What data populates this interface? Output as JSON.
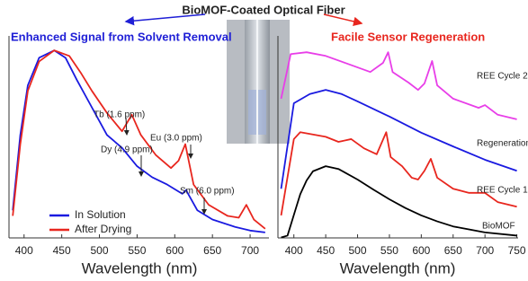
{
  "header": {
    "title": "BioMOF-Coated Optical Fiber"
  },
  "chart_data": [
    {
      "type": "line",
      "title": "Enhanced Signal from Solvent Removal",
      "title_color": "#1f1fd6",
      "x_label": "Wavelength (nm)",
      "xlim": [
        380,
        725
      ],
      "xticks": [
        400,
        450,
        500,
        550,
        600,
        650,
        700
      ],
      "ylim": [
        0,
        1.05
      ],
      "legend": "lower left",
      "annotations": [
        "Tb (1.6 ppm)",
        "Dy (4.9 ppm)",
        "Eu (3.0 ppm)",
        "Sm (6.0 ppm)"
      ],
      "series": [
        {
          "name": "In Solution",
          "color": "#1a1ae0",
          "x": [
            385,
            395,
            405,
            420,
            440,
            455,
            470,
            490,
            510,
            530,
            550,
            570,
            590,
            610,
            615,
            630,
            650,
            680,
            700,
            720
          ],
          "values": [
            0.15,
            0.56,
            0.83,
            0.98,
            1.02,
            0.98,
            0.86,
            0.71,
            0.56,
            0.49,
            0.39,
            0.33,
            0.29,
            0.24,
            0.26,
            0.15,
            0.1,
            0.06,
            0.04,
            0.03
          ]
        },
        {
          "name": "After Drying",
          "color": "#e8261e",
          "x": [
            385,
            395,
            405,
            420,
            440,
            460,
            475,
            490,
            510,
            530,
            543,
            555,
            575,
            595,
            605,
            614,
            625,
            645,
            670,
            685,
            695,
            705,
            720
          ],
          "values": [
            0.12,
            0.51,
            0.8,
            0.96,
            1.02,
            0.99,
            0.9,
            0.8,
            0.68,
            0.58,
            0.67,
            0.56,
            0.45,
            0.38,
            0.42,
            0.51,
            0.29,
            0.18,
            0.12,
            0.11,
            0.18,
            0.1,
            0.05
          ]
        }
      ]
    },
    {
      "type": "line",
      "title": "Facile Sensor Regeneration",
      "title_color": "#e8261e",
      "x_label": "Wavelength (nm)",
      "xlim": [
        375,
        752
      ],
      "xticks": [
        400,
        450,
        500,
        550,
        600,
        650,
        700,
        750
      ],
      "ylim": [
        0,
        4.2
      ],
      "series": [
        {
          "name": "REE Cycle 2",
          "color": "#e83ee8",
          "x": [
            380,
            395,
            420,
            450,
            480,
            520,
            540,
            548,
            555,
            580,
            595,
            605,
            617,
            625,
            650,
            690,
            700,
            720,
            750
          ],
          "values": [
            3.03,
            4.0,
            4.04,
            3.96,
            3.81,
            3.61,
            3.81,
            4.04,
            3.61,
            3.38,
            3.22,
            3.36,
            3.85,
            3.32,
            3.03,
            2.83,
            2.89,
            2.68,
            2.58
          ]
        },
        {
          "name": "Regeneration",
          "color": "#1a1ae0",
          "x": [
            380,
            400,
            425,
            450,
            475,
            500,
            550,
            600,
            650,
            700,
            750
          ],
          "values": [
            1.07,
            2.93,
            3.13,
            3.22,
            3.13,
            2.97,
            2.64,
            2.29,
            1.99,
            1.7,
            1.46
          ]
        },
        {
          "name": "REE Cycle 1",
          "color": "#e8261e",
          "x": [
            380,
            400,
            410,
            450,
            470,
            490,
            510,
            530,
            545,
            552,
            570,
            585,
            595,
            605,
            615,
            625,
            650,
            675,
            700,
            720,
            750
          ],
          "values": [
            0.49,
            2.15,
            2.3,
            2.2,
            2.09,
            2.15,
            1.95,
            1.82,
            2.3,
            1.76,
            1.56,
            1.31,
            1.27,
            1.46,
            1.72,
            1.31,
            1.07,
            0.98,
            0.98,
            0.78,
            0.68
          ]
        },
        {
          "name": "BioMOF",
          "color": "#000000",
          "x": [
            380,
            390,
            400,
            410,
            420,
            430,
            450,
            470,
            500,
            525,
            550,
            575,
            600,
            625,
            650,
            700,
            750
          ],
          "values": [
            0.01,
            0.05,
            0.5,
            0.95,
            1.25,
            1.45,
            1.56,
            1.5,
            1.27,
            1.05,
            0.84,
            0.65,
            0.49,
            0.36,
            0.25,
            0.12,
            0.05
          ]
        }
      ]
    }
  ]
}
